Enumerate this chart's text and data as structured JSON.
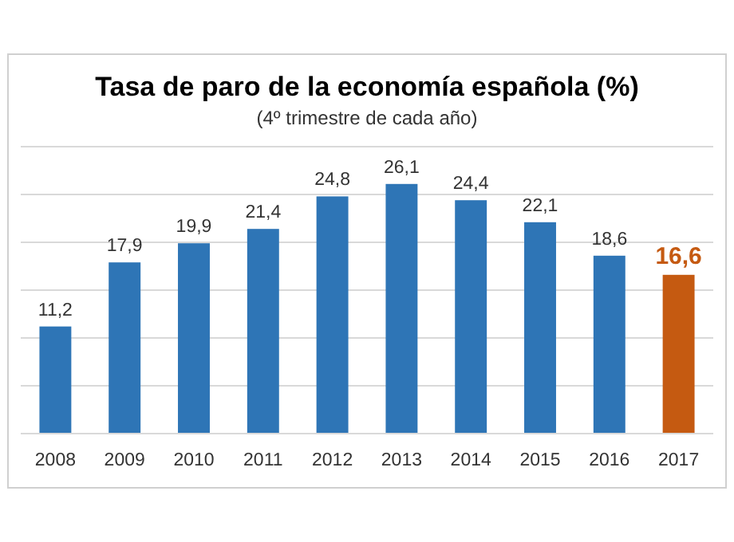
{
  "chart_data": {
    "type": "bar",
    "title": "Tasa de paro  de la economía española (%)",
    "subtitle": "(4º trimestre de cada año)",
    "categories": [
      "2008",
      "2009",
      "2010",
      "2011",
      "2012",
      "2013",
      "2014",
      "2015",
      "2016",
      "2017"
    ],
    "values": [
      11.2,
      17.9,
      19.9,
      21.4,
      24.8,
      26.1,
      24.4,
      22.1,
      18.6,
      16.6
    ],
    "colors": [
      "#2e75b6",
      "#2e75b6",
      "#2e75b6",
      "#2e75b6",
      "#2e75b6",
      "#2e75b6",
      "#2e75b6",
      "#2e75b6",
      "#2e75b6",
      "#c55a11"
    ],
    "value_labels": [
      "11,2",
      "17,9",
      "19,9",
      "21,4",
      "24,8",
      "26,1",
      "24,4",
      "22,1",
      "18,6",
      "16,6"
    ],
    "ylim": [
      0,
      30
    ],
    "yticks": [
      {
        "value": 0,
        "label": null
      },
      {
        "value": 5,
        "label": null
      },
      {
        "value": 10,
        "label": null
      },
      {
        "value": 15,
        "label": null
      },
      {
        "value": 20,
        "label": null
      },
      {
        "value": 25,
        "label": null
      },
      {
        "value": 30,
        "label": null
      }
    ],
    "grid": "y",
    "tick_labels": "x"
  }
}
